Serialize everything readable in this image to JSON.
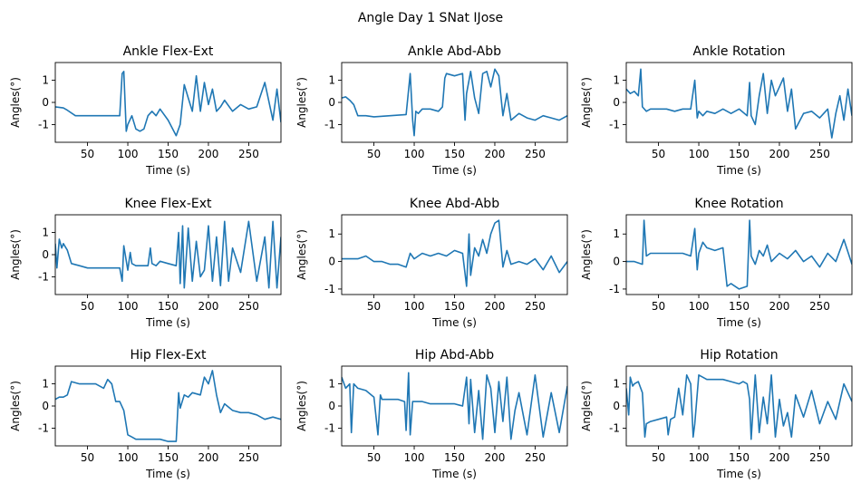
{
  "figure_title": "Angle Day 1 SNat IJose",
  "colors": {
    "line": "#1f77b4",
    "axes": "#000000",
    "background": "#ffffff"
  },
  "chart_data": [
    {
      "type": "line",
      "title": "Ankle Flex-Ext",
      "xlabel": "Time (s)",
      "ylabel": "Angles(°)",
      "xlim": [
        10,
        290
      ],
      "ylim": [
        -1.8,
        1.8
      ],
      "xticks": [
        50,
        100,
        150,
        200,
        250
      ],
      "yticks": [
        -1,
        0,
        1
      ],
      "grid": false,
      "series": [
        {
          "x": [
            10,
            20,
            25,
            35,
            50,
            70,
            90,
            93,
            95,
            98,
            100,
            105,
            110,
            115,
            120,
            125,
            130,
            135,
            140,
            150,
            160,
            165,
            170,
            175,
            180,
            185,
            190,
            195,
            200,
            205,
            210,
            215,
            220,
            230,
            240,
            250,
            260,
            270,
            280,
            285,
            290
          ],
          "y": [
            -0.2,
            -0.25,
            -0.35,
            -0.6,
            -0.6,
            -0.6,
            -0.6,
            1.3,
            1.4,
            -1.3,
            -1.0,
            -0.6,
            -1.2,
            -1.3,
            -1.2,
            -0.6,
            -0.4,
            -0.6,
            -0.3,
            -0.8,
            -1.5,
            -1.0,
            0.8,
            0.2,
            -0.4,
            1.2,
            -0.4,
            0.9,
            -0.1,
            0.6,
            -0.4,
            -0.2,
            0.1,
            -0.4,
            -0.1,
            -0.3,
            -0.2,
            0.9,
            -0.8,
            0.6,
            -0.9
          ]
        }
      ]
    },
    {
      "type": "line",
      "title": "Ankle Abd-Abb",
      "xlabel": "Time (s)",
      "ylabel": "Angles(°)",
      "xlim": [
        10,
        290
      ],
      "ylim": [
        -1.8,
        1.8
      ],
      "xticks": [
        50,
        100,
        150,
        200,
        250
      ],
      "yticks": [
        -1,
        0,
        1
      ],
      "grid": false,
      "series": [
        {
          "x": [
            10,
            15,
            20,
            25,
            30,
            40,
            50,
            70,
            90,
            95,
            98,
            100,
            102,
            105,
            110,
            120,
            130,
            135,
            138,
            140,
            150,
            160,
            163,
            165,
            170,
            175,
            180,
            185,
            190,
            195,
            200,
            205,
            210,
            215,
            220,
            230,
            240,
            250,
            260,
            270,
            280,
            290
          ],
          "y": [
            0.2,
            0.25,
            0.1,
            -0.1,
            -0.6,
            -0.6,
            -0.65,
            -0.6,
            -0.55,
            1.3,
            -0.8,
            -1.5,
            -0.4,
            -0.5,
            -0.3,
            -0.3,
            -0.4,
            -0.2,
            1.1,
            1.3,
            1.2,
            1.3,
            -0.8,
            0.4,
            1.4,
            0.2,
            -0.5,
            1.3,
            1.4,
            0.7,
            1.5,
            1.2,
            -0.6,
            0.4,
            -0.8,
            -0.5,
            -0.7,
            -0.8,
            -0.6,
            -0.7,
            -0.8,
            -0.6
          ]
        }
      ]
    },
    {
      "type": "line",
      "title": "Ankle Rotation",
      "xlabel": "Time (s)",
      "ylabel": "Angles(°)",
      "xlim": [
        10,
        290
      ],
      "ylim": [
        -1.8,
        1.8
      ],
      "xticks": [
        50,
        100,
        150,
        200,
        250
      ],
      "yticks": [
        -1,
        0,
        1
      ],
      "grid": false,
      "series": [
        {
          "x": [
            10,
            15,
            20,
            25,
            28,
            30,
            35,
            40,
            50,
            60,
            70,
            80,
            90,
            95,
            98,
            100,
            105,
            110,
            120,
            130,
            140,
            150,
            160,
            163,
            165,
            170,
            175,
            180,
            185,
            190,
            195,
            200,
            205,
            210,
            215,
            220,
            230,
            240,
            250,
            260,
            265,
            270,
            275,
            280,
            285,
            290
          ],
          "y": [
            0.6,
            0.4,
            0.5,
            0.3,
            1.5,
            -0.2,
            -0.4,
            -0.3,
            -0.3,
            -0.3,
            -0.4,
            -0.3,
            -0.3,
            1.0,
            -0.7,
            -0.4,
            -0.6,
            -0.4,
            -0.5,
            -0.3,
            -0.5,
            -0.3,
            -0.6,
            0.9,
            -0.6,
            -1.0,
            0.3,
            1.3,
            -0.5,
            1.0,
            0.3,
            0.7,
            1.1,
            -0.4,
            0.6,
            -1.2,
            -0.5,
            -0.4,
            -0.7,
            -0.3,
            -1.6,
            -0.5,
            0.3,
            -0.8,
            0.6,
            -0.6
          ]
        }
      ]
    },
    {
      "type": "line",
      "title": "Knee Flex-Ext",
      "xlabel": "Time (s)",
      "ylabel": "Angles(°)",
      "xlim": [
        10,
        290
      ],
      "ylim": [
        -1.8,
        1.8
      ],
      "xticks": [
        50,
        100,
        150,
        200,
        250
      ],
      "yticks": [
        -1,
        0,
        1
      ],
      "grid": false,
      "series": [
        {
          "x": [
            10,
            12,
            15,
            18,
            20,
            25,
            30,
            40,
            50,
            60,
            70,
            80,
            90,
            93,
            95,
            100,
            103,
            105,
            110,
            120,
            125,
            128,
            130,
            135,
            140,
            150,
            160,
            163,
            165,
            168,
            170,
            175,
            180,
            185,
            190,
            195,
            200,
            205,
            210,
            215,
            220,
            225,
            230,
            240,
            250,
            260,
            270,
            275,
            280,
            285,
            290
          ],
          "y": [
            0.5,
            -0.6,
            0.7,
            0.3,
            0.5,
            0.2,
            -0.4,
            -0.5,
            -0.6,
            -0.6,
            -0.6,
            -0.6,
            -0.6,
            -1.2,
            0.4,
            -0.7,
            0.1,
            -0.4,
            -0.5,
            -0.5,
            -0.5,
            0.3,
            -0.4,
            -0.5,
            -0.3,
            -0.4,
            -0.5,
            1.0,
            -1.3,
            1.3,
            -1.5,
            1.2,
            -1.2,
            0.6,
            -1.0,
            -0.7,
            1.3,
            -1.2,
            0.8,
            -1.4,
            1.5,
            -1.2,
            0.3,
            -0.8,
            1.5,
            -1.2,
            0.8,
            -1.5,
            1.5,
            -1.5,
            0.8
          ]
        }
      ]
    },
    {
      "type": "line",
      "title": "Knee Abd-Abb",
      "xlabel": "Time (s)",
      "ylabel": "Angles(°)",
      "xlim": [
        10,
        290
      ],
      "ylim": [
        -1.2,
        1.7
      ],
      "xticks": [
        50,
        100,
        150,
        200,
        250
      ],
      "yticks": [
        -1,
        0,
        1
      ],
      "grid": false,
      "series": [
        {
          "x": [
            10,
            20,
            30,
            40,
            50,
            60,
            70,
            80,
            90,
            95,
            100,
            105,
            110,
            120,
            130,
            140,
            150,
            160,
            165,
            168,
            170,
            175,
            180,
            185,
            190,
            195,
            200,
            205,
            210,
            215,
            220,
            230,
            240,
            250,
            260,
            270,
            280,
            290
          ],
          "y": [
            0.1,
            0.1,
            0.1,
            0.2,
            0.0,
            0.0,
            -0.1,
            -0.1,
            -0.2,
            0.3,
            0.1,
            0.2,
            0.3,
            0.2,
            0.3,
            0.2,
            0.4,
            0.3,
            -0.9,
            1.0,
            -0.5,
            0.5,
            0.2,
            0.8,
            0.3,
            1.0,
            1.4,
            1.5,
            -0.2,
            0.4,
            -0.1,
            0.0,
            -0.1,
            0.1,
            -0.3,
            0.2,
            -0.4,
            0.0
          ]
        }
      ]
    },
    {
      "type": "line",
      "title": "Knee Rotation",
      "xlabel": "Time (s)",
      "ylabel": "Angles(°)",
      "xlim": [
        10,
        290
      ],
      "ylim": [
        -1.2,
        1.7
      ],
      "xticks": [
        50,
        100,
        150,
        200,
        250
      ],
      "yticks": [
        -1,
        0,
        1
      ],
      "grid": false,
      "series": [
        {
          "x": [
            10,
            20,
            30,
            32,
            35,
            40,
            50,
            60,
            70,
            80,
            90,
            95,
            98,
            100,
            105,
            110,
            120,
            130,
            135,
            140,
            150,
            160,
            163,
            165,
            170,
            175,
            180,
            185,
            190,
            200,
            210,
            220,
            230,
            240,
            250,
            260,
            270,
            280,
            290
          ],
          "y": [
            0.0,
            0.0,
            -0.1,
            1.5,
            0.2,
            0.3,
            0.3,
            0.3,
            0.3,
            0.3,
            0.2,
            1.2,
            -0.3,
            0.3,
            0.7,
            0.5,
            0.4,
            0.5,
            -0.9,
            -0.8,
            -1.0,
            -0.9,
            1.5,
            0.2,
            -0.1,
            0.4,
            0.2,
            0.6,
            0.0,
            0.3,
            0.1,
            0.4,
            0.0,
            0.2,
            -0.2,
            0.3,
            0.0,
            0.8,
            -0.1
          ]
        }
      ]
    },
    {
      "type": "line",
      "title": "Hip Flex-Ext",
      "xlabel": "Time (s)",
      "ylabel": "Angles(°)",
      "xlim": [
        10,
        290
      ],
      "ylim": [
        -1.8,
        1.8
      ],
      "xticks": [
        50,
        100,
        150,
        200,
        250
      ],
      "yticks": [
        -1,
        0,
        1
      ],
      "grid": false,
      "series": [
        {
          "x": [
            10,
            15,
            20,
            25,
            30,
            40,
            50,
            60,
            70,
            75,
            80,
            85,
            90,
            95,
            100,
            105,
            110,
            120,
            130,
            140,
            150,
            160,
            163,
            165,
            170,
            175,
            180,
            190,
            195,
            200,
            205,
            210,
            215,
            220,
            230,
            240,
            250,
            260,
            270,
            280,
            290
          ],
          "y": [
            0.3,
            0.4,
            0.4,
            0.5,
            1.1,
            1.0,
            1.0,
            1.0,
            0.8,
            1.2,
            1.0,
            0.2,
            0.2,
            -0.2,
            -1.3,
            -1.4,
            -1.5,
            -1.5,
            -1.5,
            -1.5,
            -1.6,
            -1.6,
            0.6,
            -0.1,
            0.5,
            0.4,
            0.6,
            0.5,
            1.3,
            1.0,
            1.6,
            0.5,
            -0.3,
            0.1,
            -0.2,
            -0.3,
            -0.3,
            -0.4,
            -0.6,
            -0.5,
            -0.6
          ]
        }
      ]
    },
    {
      "type": "line",
      "title": "Hip Abd-Abb",
      "xlabel": "Time (s)",
      "ylabel": "Angles(°)",
      "xlim": [
        10,
        290
      ],
      "ylim": [
        -1.8,
        1.8
      ],
      "xticks": [
        50,
        100,
        150,
        200,
        250
      ],
      "yticks": [
        -1,
        0,
        1
      ],
      "grid": false,
      "series": [
        {
          "x": [
            10,
            15,
            20,
            22,
            25,
            30,
            40,
            50,
            55,
            58,
            60,
            70,
            80,
            88,
            90,
            93,
            95,
            98,
            100,
            110,
            120,
            130,
            140,
            150,
            160,
            165,
            168,
            170,
            175,
            180,
            185,
            190,
            195,
            200,
            205,
            210,
            215,
            220,
            225,
            230,
            240,
            250,
            260,
            270,
            280,
            290
          ],
          "y": [
            1.3,
            0.8,
            1.0,
            -1.2,
            1.0,
            0.8,
            0.7,
            0.4,
            -1.3,
            0.5,
            0.3,
            0.3,
            0.3,
            0.2,
            -1.1,
            1.5,
            -1.3,
            0.2,
            0.2,
            0.2,
            0.1,
            0.1,
            0.1,
            0.1,
            0.0,
            1.3,
            -0.8,
            1.2,
            -1.2,
            0.7,
            -1.5,
            1.4,
            0.8,
            -1.2,
            1.1,
            -0.7,
            1.3,
            -1.5,
            -0.2,
            0.6,
            -1.3,
            1.4,
            -1.4,
            0.6,
            -1.2,
            0.9
          ]
        }
      ]
    },
    {
      "type": "line",
      "title": "Hip Rotation",
      "xlabel": "Time (s)",
      "ylabel": "Angles(°)",
      "xlim": [
        10,
        290
      ],
      "ylim": [
        -1.8,
        1.8
      ],
      "xticks": [
        50,
        100,
        150,
        200,
        250
      ],
      "yticks": [
        -1,
        0,
        1
      ],
      "grid": false,
      "series": [
        {
          "x": [
            10,
            13,
            15,
            18,
            20,
            25,
            30,
            33,
            35,
            40,
            50,
            60,
            62,
            65,
            70,
            75,
            80,
            85,
            90,
            93,
            95,
            100,
            110,
            120,
            130,
            140,
            150,
            155,
            160,
            163,
            165,
            170,
            175,
            180,
            185,
            190,
            195,
            200,
            205,
            210,
            215,
            220,
            230,
            240,
            250,
            260,
            270,
            280,
            290
          ],
          "y": [
            0.8,
            -0.4,
            1.3,
            0.9,
            1.0,
            1.1,
            0.6,
            -1.4,
            -0.8,
            -0.7,
            -0.6,
            -0.5,
            -1.3,
            -0.6,
            -0.5,
            0.8,
            -0.4,
            1.4,
            1.0,
            -1.4,
            -0.8,
            1.4,
            1.2,
            1.2,
            1.2,
            1.1,
            1.0,
            1.1,
            1.0,
            0.3,
            -1.5,
            1.4,
            -1.2,
            0.4,
            -0.8,
            1.4,
            -1.4,
            0.3,
            -0.9,
            -0.3,
            -1.4,
            0.5,
            -0.5,
            0.7,
            -0.8,
            0.2,
            -0.6,
            1.0,
            0.2
          ]
        }
      ]
    }
  ]
}
